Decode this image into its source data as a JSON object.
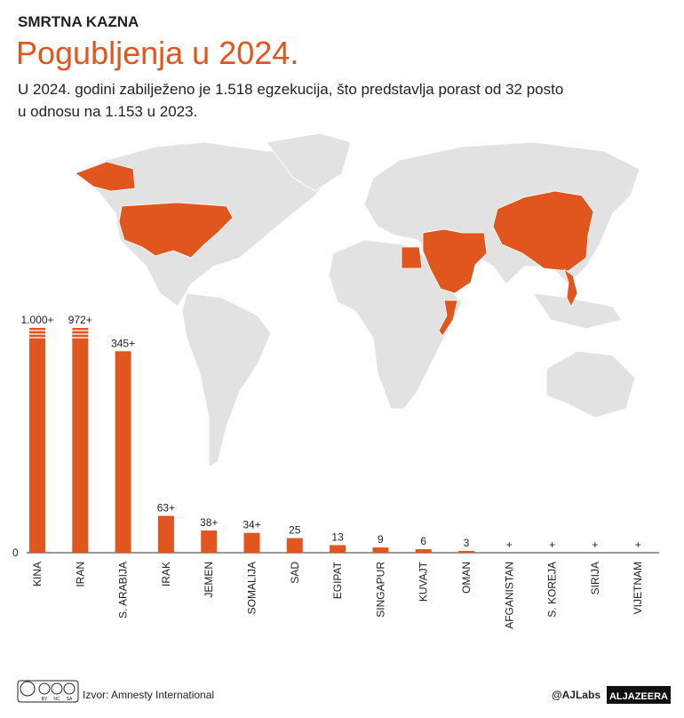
{
  "chart_data": {
    "type": "bar",
    "kicker": "SMRTNA KAZNA",
    "title": "Pogubljenja u 2024.",
    "subtitle": [
      "U 2024. godini zabilježeno je 1.518 egzekucija, što predstavlja porast od 32 posto",
      "u odnosu na 1.153 u 2023."
    ],
    "categories": [
      "KINA",
      "IRAN",
      "S. ARABIJA",
      "IRAK",
      "JEMEN",
      "SOMALIJA",
      "SAD",
      "EGIPAT",
      "SINGAPUR",
      "KUVAJT",
      "OMAN",
      "AFGANISTAN",
      "S. KOREJA",
      "SIRIJA",
      "VIJETNAM"
    ],
    "values": [
      1000,
      972,
      345,
      63,
      38,
      34,
      25,
      13,
      9,
      6,
      3,
      null,
      null,
      null,
      null
    ],
    "value_labels": [
      "1.000+",
      "972+",
      "345+",
      "63+",
      "38+",
      "34+",
      "25",
      "13",
      "9",
      "6",
      "3",
      "+",
      "+",
      "+",
      "+"
    ],
    "color": "#e0561e",
    "ylim": [
      0,
      385
    ],
    "yticks": [
      0
    ],
    "broken_bars": true,
    "source": "Izvor: Amnesty International"
  },
  "footer": {
    "license": [
      "BY",
      "NC",
      "SA"
    ],
    "credit": "@AJLabs",
    "logo": "ALJAZEERA"
  }
}
